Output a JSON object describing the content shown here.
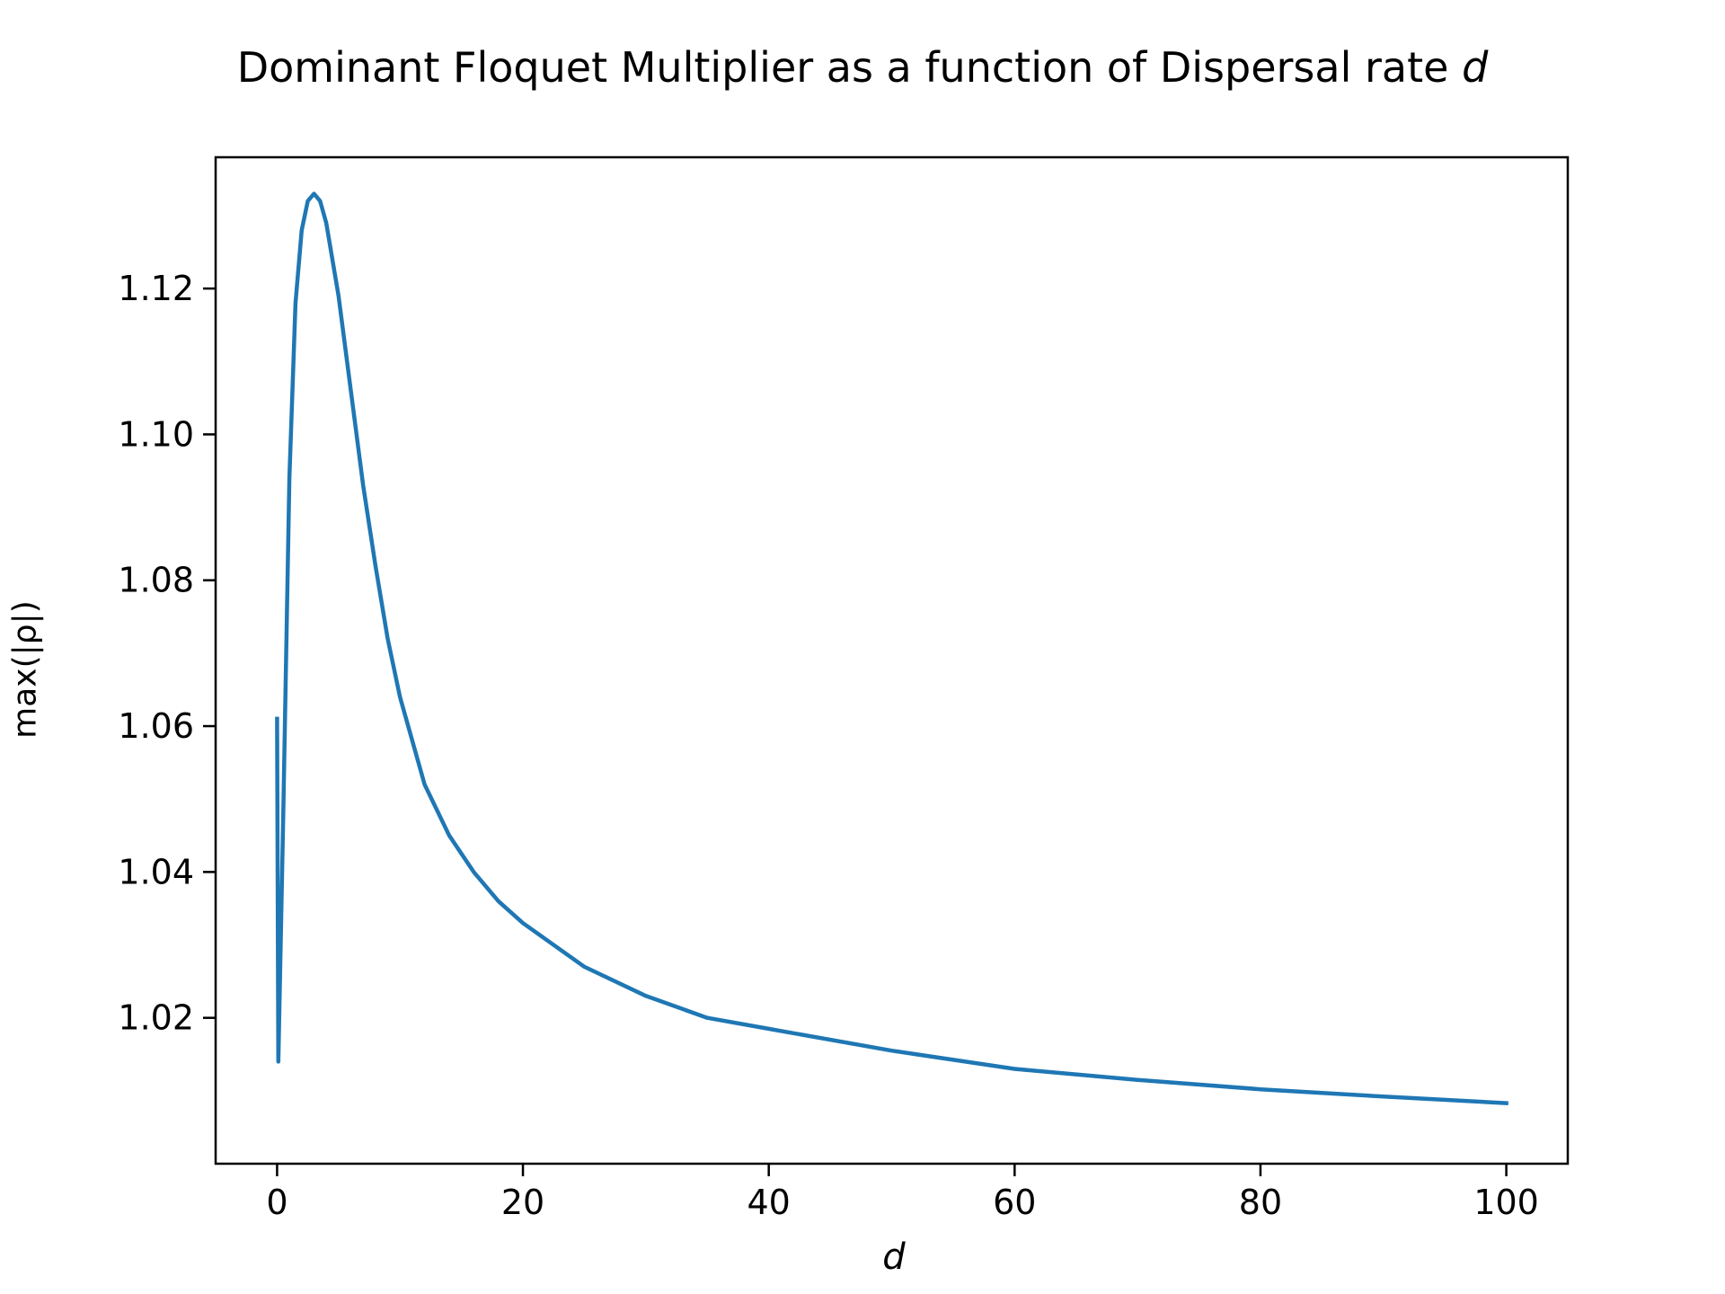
{
  "chart_data": {
    "type": "line",
    "title": "Dominant Floquet Multiplier as a function of Dispersal rate",
    "title_variable": "d",
    "xlabel": "d",
    "ylabel": "max(|ρ|)",
    "xlim": [
      -5,
      105
    ],
    "ylim": [
      1.0,
      1.138
    ],
    "xticks": [
      0,
      20,
      40,
      60,
      80,
      100
    ],
    "xtick_labels": [
      "0",
      "20",
      "40",
      "60",
      "80",
      "100"
    ],
    "yticks": [
      1.02,
      1.04,
      1.06,
      1.08,
      1.1,
      1.12
    ],
    "ytick_labels": [
      "1.02",
      "1.04",
      "1.06",
      "1.08",
      "1.10",
      "1.12"
    ],
    "grid": false,
    "series": [
      {
        "color": "#1f77b4",
        "x": [
          0,
          0.1,
          0.5,
          1,
          1.5,
          2,
          2.5,
          3,
          3.5,
          4,
          5,
          6,
          7,
          8,
          9,
          10,
          12,
          14,
          16,
          18,
          20,
          25,
          30,
          35,
          40,
          50,
          60,
          70,
          80,
          90,
          100
        ],
        "y": [
          1.061,
          1.014,
          1.048,
          1.094,
          1.118,
          1.128,
          1.132,
          1.133,
          1.132,
          1.129,
          1.119,
          1.106,
          1.093,
          1.082,
          1.072,
          1.064,
          1.052,
          1.045,
          1.04,
          1.036,
          1.033,
          1.027,
          1.023,
          1.02,
          1.0185,
          1.0155,
          1.013,
          1.0115,
          1.0102,
          1.0092,
          1.0083
        ]
      }
    ]
  }
}
